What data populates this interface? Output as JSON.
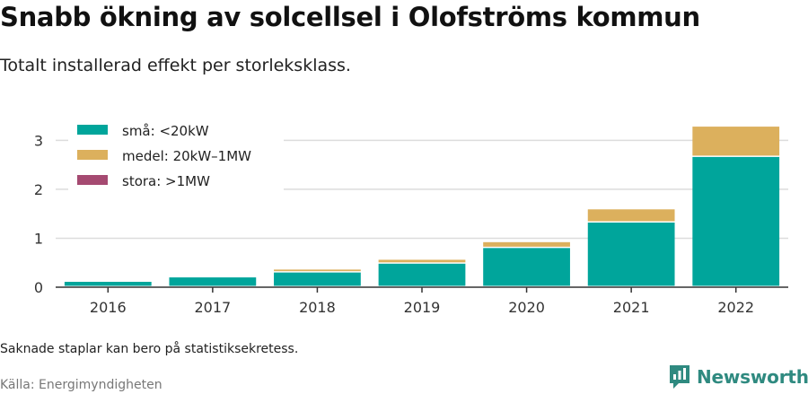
{
  "title": "Snabb ökning av solcellsel i Olofströms kommun",
  "subtitle": "Totalt installerad effekt per storleksklass.",
  "footnote": "Saknade staplar kan bero på statistiksekretess.",
  "source": "Källa: Energimyndigheten",
  "brand": {
    "name": "Newsworthy",
    "logo_icon": "newsworthy-logo-icon",
    "color": "#2f8a80"
  },
  "chart_data": {
    "type": "bar",
    "stacked": true,
    "categories": [
      "2016",
      "2017",
      "2018",
      "2019",
      "2020",
      "2021",
      "2022"
    ],
    "series": [
      {
        "name": "små: <20kW",
        "color": "#00a59b",
        "values": [
          0.11,
          0.2,
          0.3,
          0.48,
          0.8,
          1.32,
          2.66
        ]
      },
      {
        "name": "medel: 20kW–1MW",
        "color": "#dcb05d",
        "values": [
          0.0,
          0.0,
          0.06,
          0.08,
          0.12,
          0.27,
          0.62
        ]
      },
      {
        "name": "stora: >1MW",
        "color": "#a54a71",
        "values": [
          0,
          0,
          0,
          0,
          0,
          0,
          0
        ]
      }
    ],
    "ylim": [
      0,
      3.3
    ],
    "yticks": [
      0,
      1,
      2,
      3
    ],
    "ytick_labels": [
      "0",
      "1",
      "2",
      "3"
    ],
    "grid": true,
    "legend_position": "top-left",
    "xlabel": "",
    "ylabel": ""
  }
}
